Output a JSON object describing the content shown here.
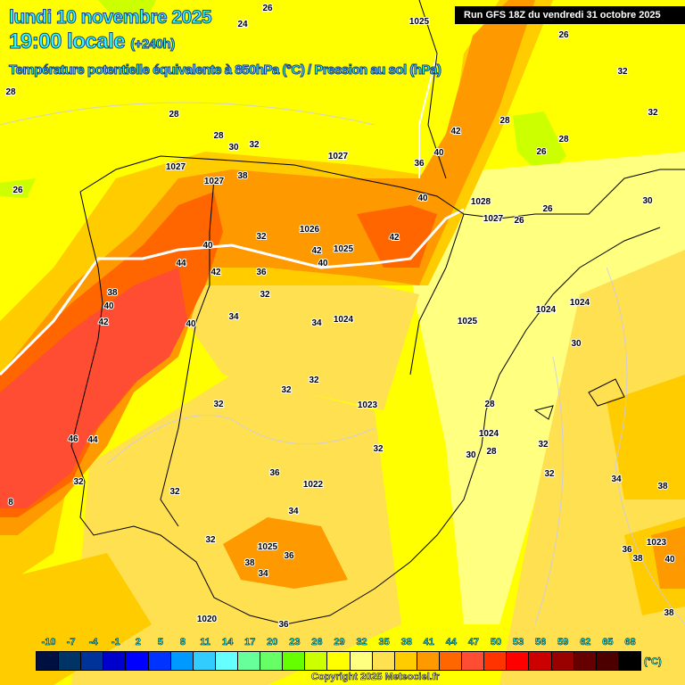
{
  "header": {
    "date": "lundi 10 novembre 2025",
    "time": "19:00 locale",
    "lead": "(+240h)",
    "parameter": "Température potentielle équivalente à 850hPa (°C) / Pression au sol (hPa)",
    "run": "Run GFS 18Z du vendredi 31 octobre 2025"
  },
  "legend": {
    "ticks": [
      "-10",
      "-7",
      "-4",
      "-1",
      "2",
      "5",
      "8",
      "11",
      "14",
      "17",
      "20",
      "23",
      "26",
      "29",
      "32",
      "35",
      "38",
      "41",
      "44",
      "47",
      "50",
      "53",
      "56",
      "59",
      "62",
      "65",
      "68"
    ],
    "colors": [
      "#001040",
      "#003366",
      "#003399",
      "#0000cc",
      "#0000ff",
      "#0033ff",
      "#0099ff",
      "#33ccff",
      "#66ffff",
      "#66ff99",
      "#66ff66",
      "#66ff00",
      "#ccff00",
      "#ffff00",
      "#ffff80",
      "#ffe050",
      "#ffcc00",
      "#ff9900",
      "#ff6600",
      "#ff4d33",
      "#ff3300",
      "#ff0000",
      "#cc0000",
      "#990000",
      "#660000",
      "#4d0000",
      "#000000"
    ],
    "unit": "(°C)"
  },
  "copyright": "Copyright 2025 Meteociel.fr",
  "map": {
    "theta_e_labels": [
      "26",
      "24",
      "28",
      "28",
      "28",
      "30",
      "32",
      "26",
      "38",
      "40",
      "44",
      "42",
      "32",
      "36",
      "32",
      "38",
      "40",
      "42",
      "40",
      "34",
      "34",
      "32",
      "32",
      "32",
      "46",
      "44",
      "32",
      "32",
      "36",
      "34",
      "32",
      "38",
      "34",
      "36",
      "8",
      "42",
      "40",
      "42",
      "40",
      "36",
      "40",
      "42",
      "28",
      "28",
      "26",
      "32",
      "32",
      "26",
      "26",
      "30",
      "30",
      "28",
      "28",
      "30",
      "32",
      "32",
      "32",
      "34",
      "38",
      "36",
      "38",
      "40",
      "38",
      "36",
      "26"
    ],
    "pressure_labels": [
      "1025",
      "1027",
      "1027",
      "1027",
      "1026",
      "1025",
      "1028",
      "1027",
      "1024",
      "1025",
      "1024",
      "1024",
      "1023",
      "1024",
      "1022",
      "1025",
      "1020",
      "1023"
    ]
  }
}
